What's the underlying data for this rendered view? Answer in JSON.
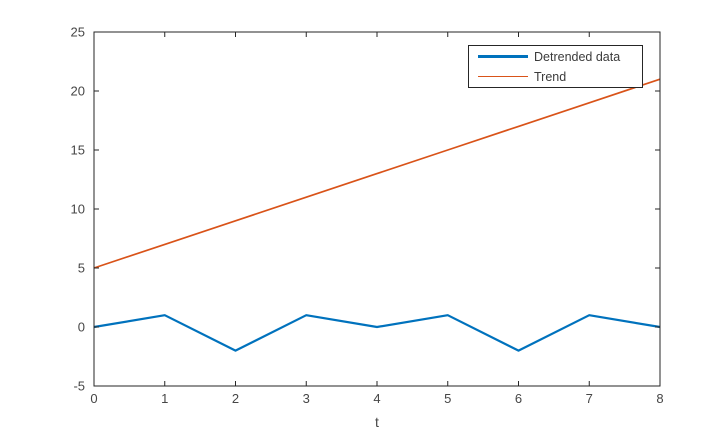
{
  "chart_data": {
    "type": "line",
    "title": "",
    "xlabel": "t",
    "ylabel": "",
    "xlim": [
      0,
      8
    ],
    "ylim": [
      -5,
      25
    ],
    "xticks": [
      0,
      1,
      2,
      3,
      4,
      5,
      6,
      7,
      8
    ],
    "yticks": [
      -5,
      0,
      5,
      10,
      15,
      20,
      25
    ],
    "grid": false,
    "legend_position": "northeast",
    "x": [
      0,
      1,
      2,
      3,
      4,
      5,
      6,
      7,
      8
    ],
    "series": [
      {
        "name": "Detrended data",
        "color": "#0072BD",
        "line_width": 2.2,
        "values": [
          0,
          1,
          -2,
          1,
          0,
          1,
          -2,
          1,
          0
        ]
      },
      {
        "name": "Trend",
        "color": "#D95319",
        "line_width": 1.7,
        "values": [
          5,
          7,
          9,
          11,
          13,
          15,
          17,
          19,
          21
        ]
      }
    ],
    "axis_color": "#262626",
    "tick_label_color": "#464646",
    "background_color": "#ffffff"
  },
  "legend": {
    "entries": [
      "Detrended data",
      "Trend"
    ]
  }
}
